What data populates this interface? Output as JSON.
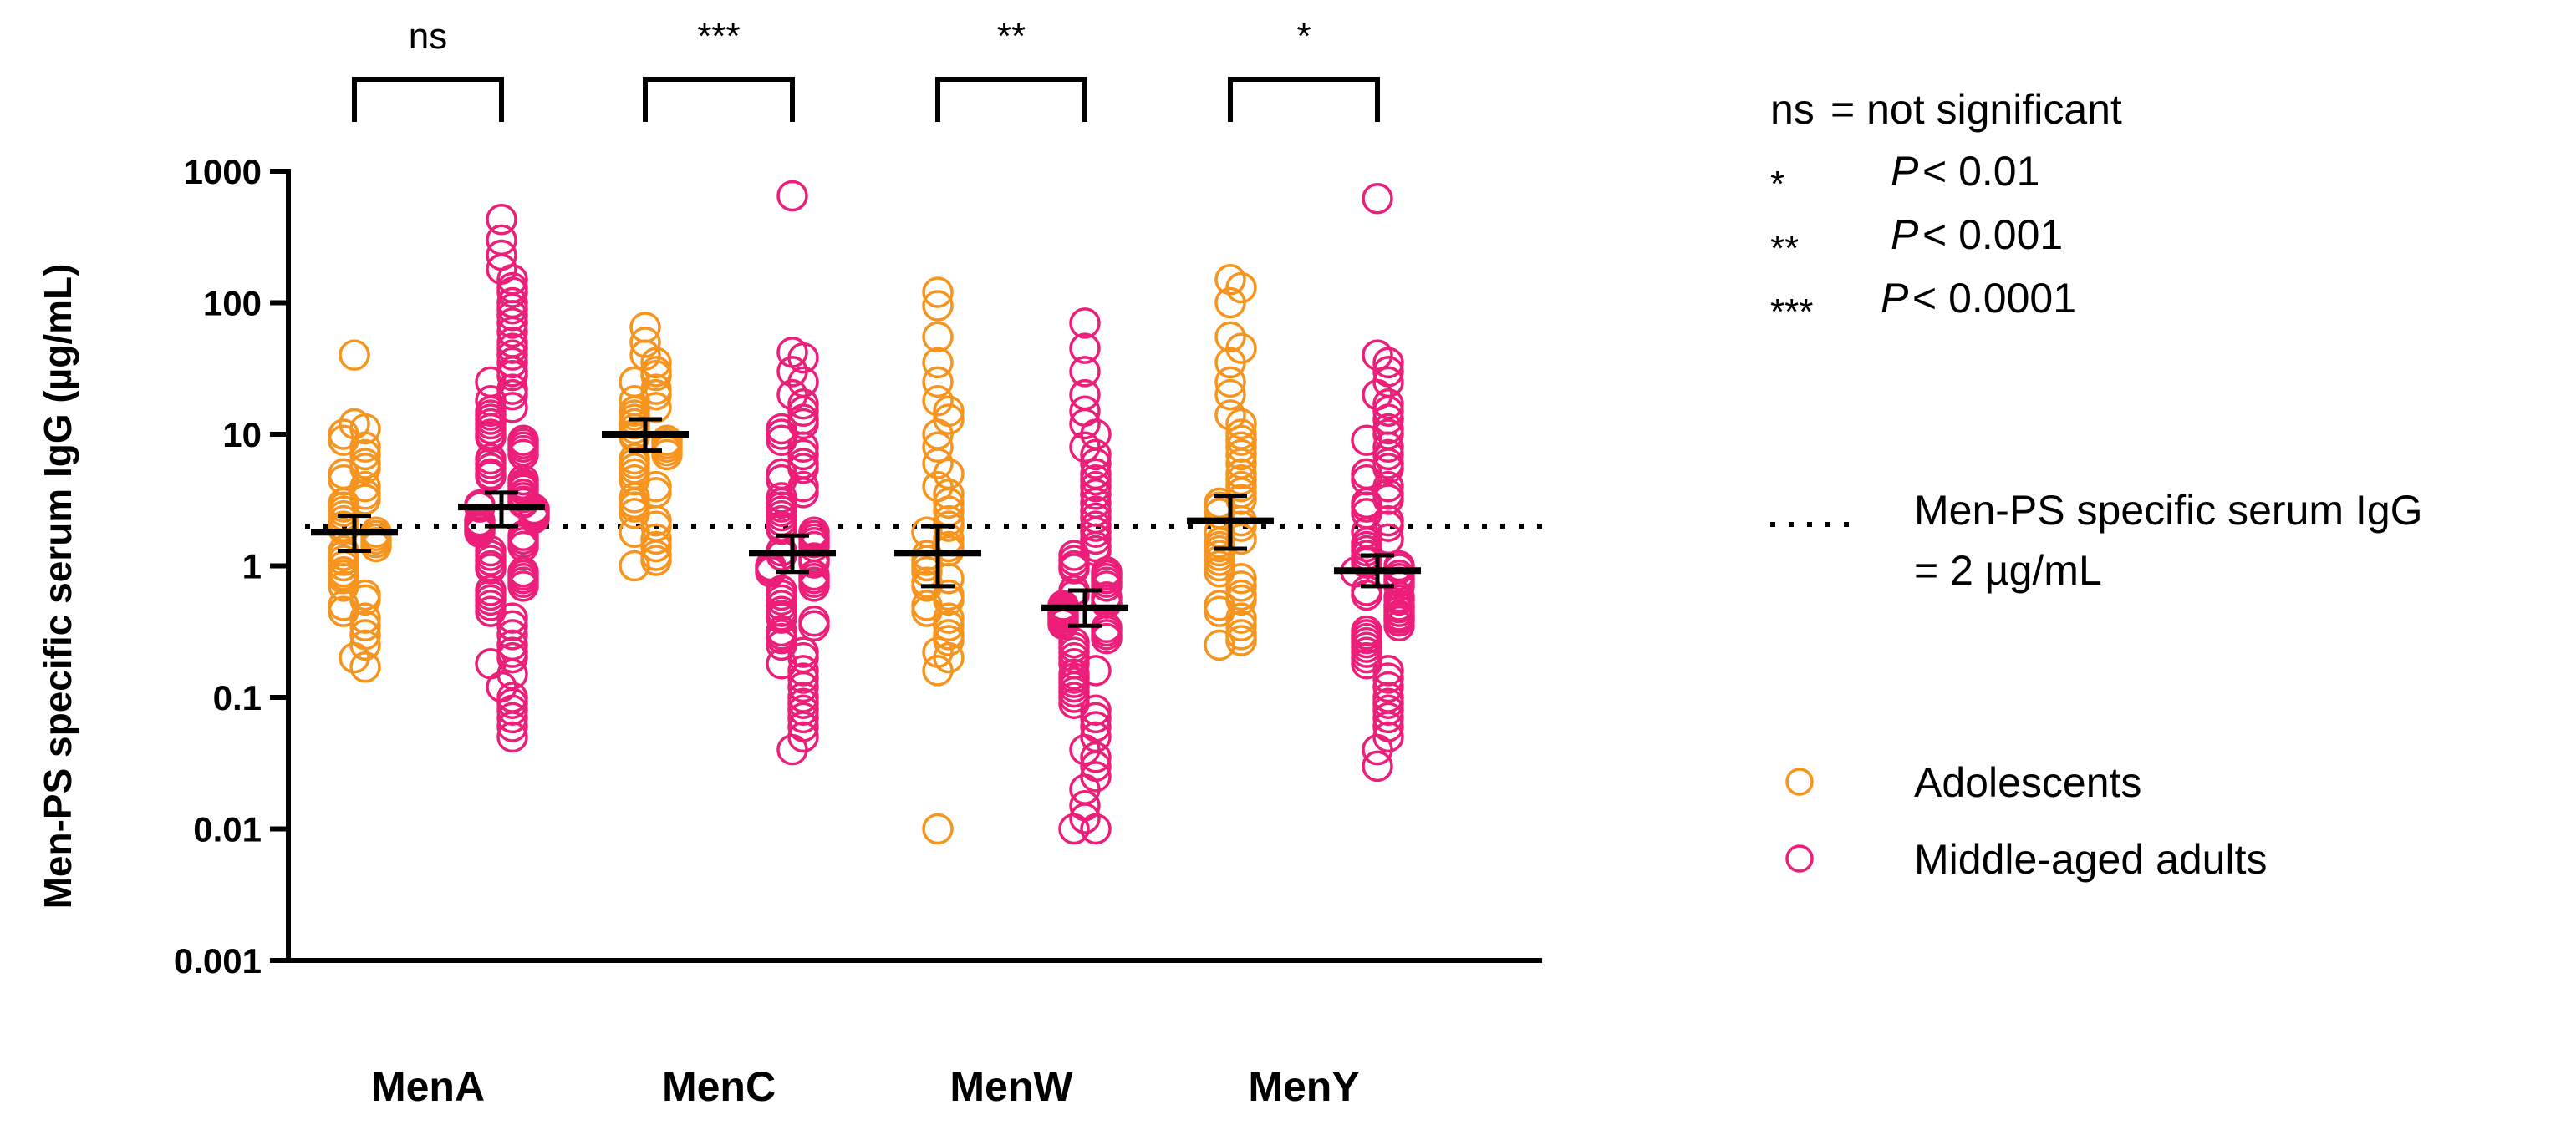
{
  "chart_data": {
    "type": "scatter",
    "subtype": "dot-plot-with-geometric-mean-and-95ci",
    "ylabel": "Men-PS specific serum IgG (µg/mL)",
    "yscale": "log",
    "ylim": [
      0.001,
      1000
    ],
    "yticks": [
      0.001,
      0.01,
      0.1,
      1,
      10,
      100,
      1000
    ],
    "ytick_labels": [
      "0.001",
      "0.01",
      "0.1",
      "1",
      "10",
      "100",
      "1000"
    ],
    "categories": [
      "MenA",
      "MenC",
      "MenW",
      "MenY"
    ],
    "colors": {
      "adolescents": "#f7941d",
      "adults": "#ec1e79"
    },
    "series": [
      {
        "name": "Adolescents",
        "color": "#f7941d",
        "geo_mean": [
          1.8,
          10,
          1.25,
          2.2
        ],
        "ci_low": [
          1.3,
          7.5,
          0.7,
          1.35
        ],
        "ci_high": [
          2.4,
          13,
          2.0,
          3.4
        ],
        "points": [
          [
            40,
            12,
            11,
            10,
            9,
            8,
            7,
            6,
            5.5,
            5,
            4.5,
            4,
            3.5,
            3.2,
            3,
            2.8,
            2.6,
            2.4,
            2.2,
            2,
            1.9,
            1.8,
            1.7,
            1.6,
            1.5,
            1.4,
            1.3,
            1.2,
            1.1,
            1,
            0.9,
            0.85,
            0.8,
            0.7,
            0.6,
            0.55,
            0.5,
            0.45,
            0.4,
            0.35,
            0.3,
            0.25,
            0.2,
            0.17
          ],
          [
            65,
            50,
            40,
            35,
            30,
            28,
            25,
            22,
            20,
            18,
            16,
            15,
            14,
            13,
            12,
            11,
            10,
            9.5,
            9,
            8.5,
            8,
            7.5,
            7,
            6.5,
            6,
            5.5,
            5,
            4.5,
            4,
            3.6,
            3.3,
            3,
            2.8,
            2.5,
            2.2,
            2,
            1.8,
            1.6,
            1.4,
            1.2,
            1.1,
            1
          ],
          [
            120,
            95,
            55,
            35,
            25,
            18,
            15,
            13,
            10,
            8,
            6,
            5,
            4,
            3.5,
            3,
            2.6,
            2.2,
            2,
            1.8,
            1.6,
            1.4,
            1.3,
            1.2,
            1.1,
            1,
            0.9,
            0.8,
            0.75,
            0.7,
            0.6,
            0.55,
            0.5,
            0.45,
            0.4,
            0.35,
            0.3,
            0.27,
            0.22,
            0.2,
            0.16,
            0.01
          ],
          [
            150,
            130,
            100,
            55,
            45,
            35,
            25,
            20,
            14,
            12,
            10,
            9,
            8,
            7,
            6,
            5,
            4.5,
            4,
            3.6,
            3.2,
            3,
            2.8,
            2.5,
            2.2,
            2,
            1.8,
            1.6,
            1.5,
            1.4,
            1.3,
            1.2,
            1.1,
            1,
            0.9,
            0.8,
            0.7,
            0.6,
            0.55,
            0.5,
            0.45,
            0.4,
            0.35,
            0.3,
            0.27,
            0.25
          ]
        ]
      },
      {
        "name": "Middle-aged adults",
        "color": "#ec1e79",
        "geo_mean": [
          2.8,
          1.25,
          0.48,
          0.92
        ],
        "ci_low": [
          2.0,
          0.9,
          0.35,
          0.7
        ],
        "ci_high": [
          3.6,
          1.7,
          0.65,
          1.2
        ],
        "points": [
          [
            430,
            300,
            230,
            180,
            150,
            130,
            120,
            100,
            90,
            80,
            70,
            60,
            50,
            45,
            40,
            35,
            30,
            28,
            25,
            22,
            20,
            18,
            16,
            15,
            14,
            13,
            12,
            11,
            10,
            9.5,
            9,
            8.5,
            8,
            7.5,
            7,
            6.5,
            6,
            5.5,
            5,
            4.8,
            4.5,
            4.2,
            4,
            3.8,
            3.5,
            3.3,
            3.1,
            3,
            2.9,
            2.8,
            2.7,
            2.6,
            2.5,
            2.4,
            2.3,
            2.2,
            2.1,
            2,
            1.9,
            1.8,
            1.7,
            1.6,
            1.5,
            1.4,
            1.3,
            1.2,
            1.1,
            1,
            0.95,
            0.9,
            0.85,
            0.8,
            0.75,
            0.7,
            0.65,
            0.6,
            0.55,
            0.5,
            0.45,
            0.4,
            0.35,
            0.3,
            0.25,
            0.22,
            0.2,
            0.18,
            0.15,
            0.12,
            0.1,
            0.09,
            0.08,
            0.07,
            0.06,
            0.05
          ],
          [
            650,
            42,
            38,
            30,
            25,
            20,
            17,
            15,
            13,
            12,
            11,
            10,
            9,
            8,
            7,
            6,
            5.5,
            5,
            4.5,
            4,
            3.6,
            3.3,
            3,
            2.8,
            2.6,
            2.4,
            2.2,
            2,
            1.9,
            1.8,
            1.7,
            1.6,
            1.5,
            1.4,
            1.3,
            1.2,
            1.15,
            1.1,
            1.05,
            1,
            0.95,
            0.9,
            0.85,
            0.8,
            0.75,
            0.7,
            0.65,
            0.6,
            0.55,
            0.5,
            0.45,
            0.42,
            0.4,
            0.38,
            0.35,
            0.32,
            0.3,
            0.28,
            0.25,
            0.22,
            0.2,
            0.18,
            0.16,
            0.14,
            0.12,
            0.1,
            0.09,
            0.08,
            0.07,
            0.06,
            0.05,
            0.04
          ],
          [
            70,
            45,
            30,
            20,
            15,
            12,
            10,
            8,
            7,
            6,
            5,
            4.5,
            4,
            3.5,
            3,
            2.6,
            2.3,
            2,
            1.8,
            1.6,
            1.4,
            1.3,
            1.2,
            1.1,
            1,
            0.95,
            0.9,
            0.85,
            0.8,
            0.75,
            0.7,
            0.65,
            0.6,
            0.58,
            0.55,
            0.52,
            0.5,
            0.48,
            0.46,
            0.44,
            0.42,
            0.4,
            0.38,
            0.36,
            0.34,
            0.32,
            0.3,
            0.28,
            0.26,
            0.24,
            0.22,
            0.2,
            0.18,
            0.16,
            0.15,
            0.14,
            0.13,
            0.12,
            0.11,
            0.1,
            0.09,
            0.08,
            0.07,
            0.06,
            0.05,
            0.04,
            0.035,
            0.03,
            0.025,
            0.02,
            0.015,
            0.012,
            0.01,
            0.01
          ],
          [
            620,
            40,
            35,
            30,
            25,
            20,
            17,
            15,
            13,
            11,
            10,
            9,
            8,
            7,
            6,
            5.5,
            5,
            4.5,
            4,
            3.5,
            3.2,
            3,
            2.8,
            2.5,
            2.2,
            2,
            1.8,
            1.6,
            1.5,
            1.4,
            1.3,
            1.2,
            1.1,
            1.05,
            1,
            0.95,
            0.9,
            0.85,
            0.8,
            0.75,
            0.7,
            0.65,
            0.6,
            0.58,
            0.55,
            0.5,
            0.48,
            0.45,
            0.42,
            0.4,
            0.38,
            0.35,
            0.32,
            0.3,
            0.28,
            0.26,
            0.24,
            0.22,
            0.2,
            0.18,
            0.16,
            0.14,
            0.12,
            0.1,
            0.09,
            0.08,
            0.07,
            0.06,
            0.05,
            0.04,
            0.03
          ]
        ]
      }
    ],
    "threshold": {
      "value": 2,
      "label_line1": "Men-PS specific serum IgG",
      "label_line2": "= 2 µg/mL"
    },
    "significance": [
      "ns",
      "***",
      "**",
      "*"
    ],
    "significance_key": [
      {
        "symbol": "ns",
        "text": "= not significant",
        "p_value": ""
      },
      {
        "symbol": "*",
        "text": "",
        "p_value": "< 0.01"
      },
      {
        "symbol": "**",
        "text": "",
        "p_value": "< 0.001"
      },
      {
        "symbol": "***",
        "text": "",
        "p_value": "< 0.0001"
      }
    ],
    "p_symbol": "P",
    "legend": [
      {
        "label": "Adolescents",
        "color": "#f7941d"
      },
      {
        "label": "Middle-aged adults",
        "color": "#ec1e79"
      }
    ]
  }
}
